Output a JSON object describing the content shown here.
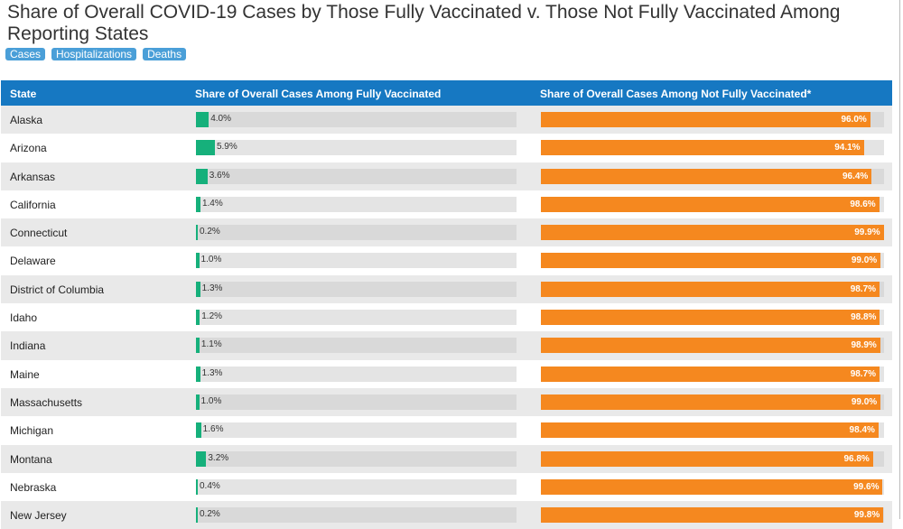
{
  "title": "Share of Overall COVID-19 Cases by Those Fully Vaccinated v. Those Not Fully Vaccinated Among Reporting States",
  "tabs": [
    "Cases",
    "Hospitalizations",
    "Deaths"
  ],
  "colors": {
    "header": "#1678c2",
    "vaccinated": "#16b07b",
    "unvaccinated": "#f5881f",
    "tab": "#4a9fd8"
  },
  "chart_data": {
    "type": "bar",
    "columns": [
      "State",
      "Share of Overall Cases Among Fully Vaccinated",
      "Share of Overall Cases Among Not Fully Vaccinated*"
    ],
    "categories": [
      "Alaska",
      "Arizona",
      "Arkansas",
      "California",
      "Connecticut",
      "Delaware",
      "District of Columbia",
      "Idaho",
      "Indiana",
      "Maine",
      "Massachusetts",
      "Michigan",
      "Montana",
      "Nebraska",
      "New Jersey"
    ],
    "series": [
      {
        "name": "Share of Overall Cases Among Fully Vaccinated",
        "values": [
          4.0,
          5.9,
          3.6,
          1.4,
          0.2,
          1.0,
          1.3,
          1.2,
          1.1,
          1.3,
          1.0,
          1.6,
          3.2,
          0.4,
          0.2
        ]
      },
      {
        "name": "Share of Overall Cases Among Not Fully Vaccinated*",
        "values": [
          96.0,
          94.1,
          96.4,
          98.6,
          99.9,
          99.0,
          98.7,
          98.8,
          98.9,
          98.7,
          99.0,
          98.4,
          96.8,
          99.6,
          99.8
        ]
      }
    ],
    "labels_vaccinated": [
      "4.0%",
      "5.9%",
      "3.6%",
      "1.4%",
      "0.2%",
      "1.0%",
      "1.3%",
      "1.2%",
      "1.1%",
      "1.3%",
      "1.0%",
      "1.6%",
      "3.2%",
      "0.4%",
      "0.2%"
    ],
    "labels_unvaccinated": [
      "96.0%",
      "94.1%",
      "96.4%",
      "98.6%",
      "99.9%",
      "99.0%",
      "98.7%",
      "98.8%",
      "98.9%",
      "98.7%",
      "99.0%",
      "98.4%",
      "96.8%",
      "99.6%",
      "99.8%"
    ],
    "xlim": [
      0,
      100
    ]
  }
}
